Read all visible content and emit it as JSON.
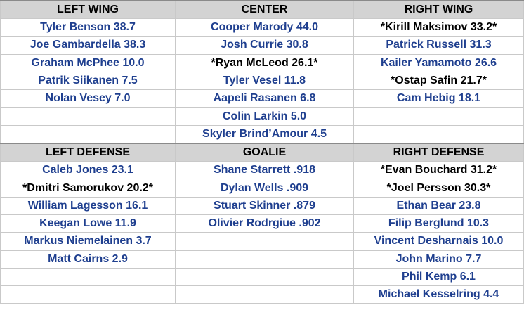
{
  "colors": {
    "player_text": "#1f3f8f",
    "starred_text": "#000000",
    "header_bg": "#d3d3d3"
  },
  "sections": [
    {
      "headers": [
        "LEFT WING",
        "CENTER",
        "RIGHT WING"
      ],
      "columns": [
        [
          "Tyler Benson 38.7",
          "Joe Gambardella 38.3",
          "Graham McPhee 10.0",
          "Patrik Siikanen 7.5",
          "Nolan Vesey 7.0",
          "",
          ""
        ],
        [
          "Cooper Marody 44.0",
          "Josh Currie 30.8",
          "*Ryan McLeod 26.1*",
          "Tyler Vesel 11.8",
          "Aapeli Rasanen 6.8",
          "Colin Larkin 5.0",
          "Skyler Brind’Amour 4.5"
        ],
        [
          "*Kirill Maksimov 33.2*",
          "Patrick Russell 31.3",
          "Kailer Yamamoto 26.6",
          "*Ostap Safin 21.7*",
          "Cam Hebig 18.1",
          "",
          ""
        ]
      ]
    },
    {
      "headers": [
        "LEFT DEFENSE",
        "GOALIE",
        "RIGHT DEFENSE"
      ],
      "columns": [
        [
          "Caleb Jones 23.1",
          "*Dmitri Samorukov 20.2*",
          "William Lagesson 16.1",
          "Keegan Lowe 11.9",
          "Markus Niemelainen 3.7",
          "Matt Cairns 2.9",
          "",
          ""
        ],
        [
          "Shane Starrett .918",
          "Dylan Wells .909",
          "Stuart Skinner .879",
          "Olivier Rodrgiue .902",
          "",
          "",
          "",
          ""
        ],
        [
          "*Evan Bouchard 31.2*",
          "*Joel Persson 30.3*",
          "Ethan Bear 23.8",
          "Filip Berglund 10.3",
          "Vincent Desharnais 10.0",
          "John Marino 7.7",
          "Phil Kemp 6.1",
          "Michael Kesselring 4.4"
        ]
      ]
    }
  ]
}
